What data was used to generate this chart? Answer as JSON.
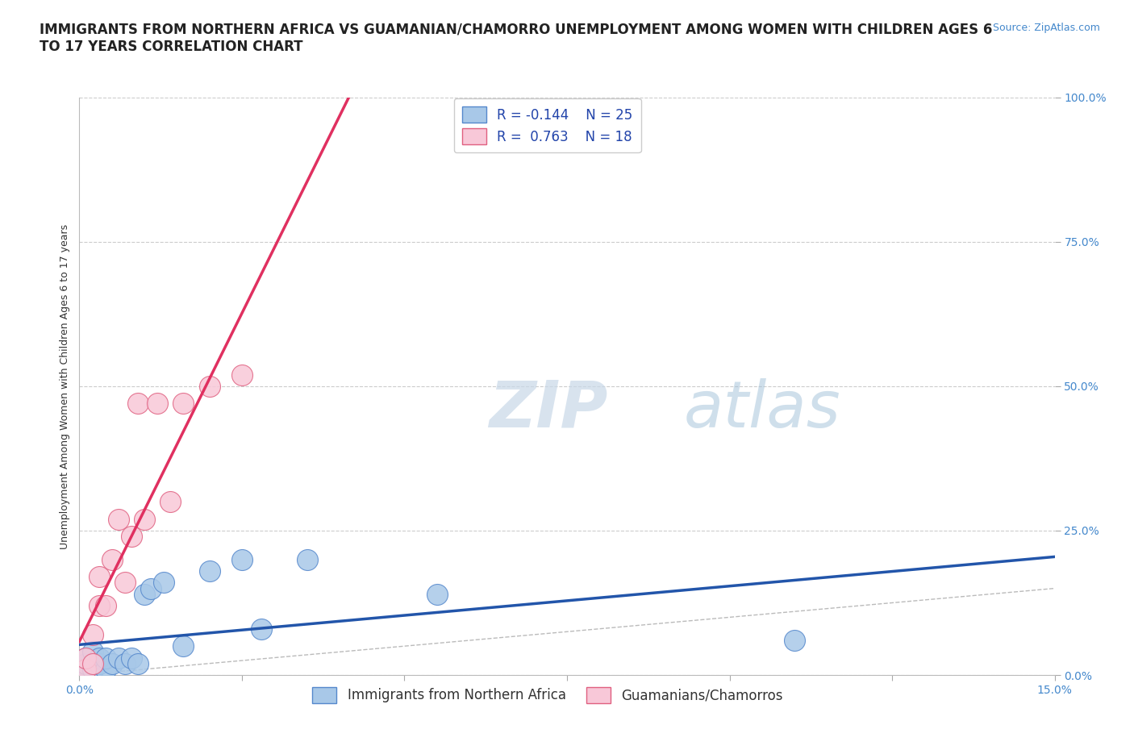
{
  "title": "IMMIGRANTS FROM NORTHERN AFRICA VS GUAMANIAN/CHAMORRO UNEMPLOYMENT AMONG WOMEN WITH CHILDREN AGES 6\nTO 17 YEARS CORRELATION CHART",
  "source_text": "Source: ZipAtlas.com",
  "ylabel": "Unemployment Among Women with Children Ages 6 to 17 years",
  "xlim": [
    0.0,
    0.15
  ],
  "ylim": [
    0.0,
    1.0
  ],
  "yticks": [
    0.0,
    0.25,
    0.5,
    0.75,
    1.0
  ],
  "ytick_labels": [
    "0.0%",
    "25.0%",
    "50.0%",
    "75.0%",
    "100.0%"
  ],
  "xticks": [
    0.0,
    0.025,
    0.05,
    0.075,
    0.1,
    0.125,
    0.15
  ],
  "xtick_labels": [
    "0.0%",
    "",
    "",
    "",
    "",
    "",
    "15.0%"
  ],
  "grid_color": "#cccccc",
  "background_color": "#ffffff",
  "series1_name": "Immigrants from Northern Africa",
  "series1_color": "#a8c8e8",
  "series1_edge_color": "#5588cc",
  "series1_line_color": "#2255aa",
  "series1_R": -0.144,
  "series1_N": 25,
  "series2_name": "Guamanians/Chamorros",
  "series2_color": "#f8c8d8",
  "series2_edge_color": "#e06080",
  "series2_line_color": "#e03060",
  "series2_R": 0.763,
  "series2_N": 18,
  "series1_x": [
    0.001,
    0.001,
    0.001,
    0.002,
    0.002,
    0.002,
    0.003,
    0.003,
    0.004,
    0.004,
    0.005,
    0.006,
    0.007,
    0.008,
    0.009,
    0.01,
    0.011,
    0.013,
    0.016,
    0.02,
    0.025,
    0.028,
    0.035,
    0.055,
    0.11
  ],
  "series1_y": [
    0.01,
    0.02,
    0.03,
    0.01,
    0.02,
    0.04,
    0.02,
    0.03,
    0.01,
    0.03,
    0.02,
    0.03,
    0.02,
    0.03,
    0.02,
    0.14,
    0.15,
    0.16,
    0.05,
    0.18,
    0.2,
    0.08,
    0.2,
    0.14,
    0.06
  ],
  "series2_x": [
    0.001,
    0.001,
    0.002,
    0.002,
    0.003,
    0.003,
    0.004,
    0.005,
    0.006,
    0.007,
    0.008,
    0.009,
    0.01,
    0.012,
    0.014,
    0.016,
    0.02,
    0.025
  ],
  "series2_y": [
    0.01,
    0.03,
    0.02,
    0.07,
    0.12,
    0.17,
    0.12,
    0.2,
    0.27,
    0.16,
    0.24,
    0.47,
    0.27,
    0.47,
    0.3,
    0.47,
    0.5,
    0.52
  ],
  "title_fontsize": 12,
  "axis_label_fontsize": 9,
  "tick_fontsize": 10,
  "source_fontsize": 9,
  "legend_fontsize": 12,
  "tick_color": "#4488cc"
}
